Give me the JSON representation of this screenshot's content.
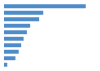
{
  "chart_data": {
    "type": "bar",
    "orientation": "horizontal",
    "categories": [
      null,
      null,
      null,
      null,
      null,
      null,
      null,
      null,
      null,
      null
    ],
    "values": [
      100,
      48,
      43,
      32,
      28,
      24,
      21,
      18,
      14,
      4
    ],
    "color": "#4d8bc9",
    "xlim": [
      0,
      115
    ],
    "grid": false,
    "tick_labels": false
  }
}
